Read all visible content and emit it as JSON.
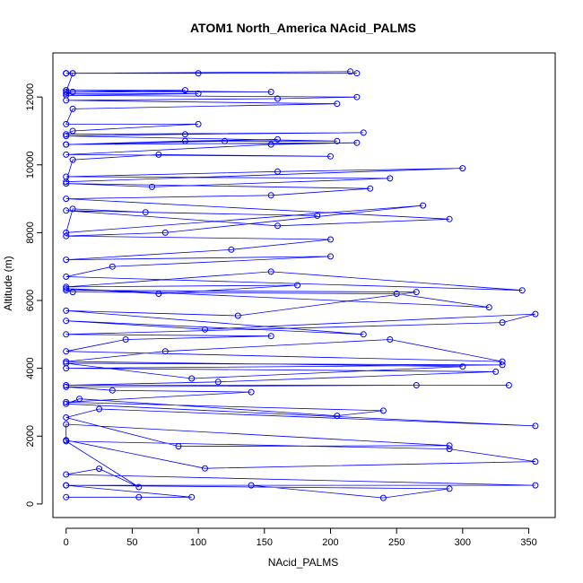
{
  "chart_data": {
    "type": "scatter",
    "title": "ATOM1 North_America NAcid_PALMS",
    "xlabel": "NAcid_PALMS",
    "ylabel": "Altitude (m)",
    "xlim": [
      -10,
      370
    ],
    "ylim": [
      -400,
      13300
    ],
    "x_ticks": [
      0,
      50,
      100,
      150,
      200,
      250,
      300,
      350
    ],
    "y_ticks": [
      0,
      2000,
      4000,
      6000,
      8000,
      10000,
      12000
    ],
    "grid": false,
    "legend": "none",
    "color": "#0000ff",
    "series": [
      {
        "mode": "lines+markers",
        "x": [
          0,
          55,
          95,
          0,
          140,
          240,
          290,
          0,
          355,
          0,
          25,
          55,
          0,
          290,
          355,
          105,
          0,
          0,
          290,
          85,
          0,
          25,
          355,
          0,
          10,
          205,
          240,
          0,
          140,
          35,
          0,
          265,
          335,
          0,
          115,
          325,
          0,
          330,
          0,
          95,
          300,
          0,
          75,
          245,
          330,
          0,
          45,
          155,
          0,
          330,
          355,
          105,
          0,
          225,
          0,
          130,
          265,
          0,
          5,
          250,
          320,
          0,
          70,
          175,
          0,
          155,
          345,
          0,
          35,
          200,
          0,
          125,
          200,
          0,
          75,
          270,
          0,
          5,
          60,
          190,
          0,
          160,
          290,
          0,
          155,
          230,
          0,
          65,
          245,
          0,
          160,
          300,
          0,
          5,
          70,
          200,
          0,
          155,
          220,
          0,
          90,
          160,
          0,
          120,
          205,
          0,
          90,
          225,
          0,
          5,
          100,
          0,
          5,
          205,
          0,
          160,
          220,
          0,
          100,
          0,
          5,
          90,
          0,
          155,
          0,
          5,
          220,
          0,
          5,
          100,
          0,
          215,
          0
        ],
        "y": [
          200,
          200,
          200,
          550,
          550,
          180,
          450,
          550,
          550,
          870,
          1040,
          500,
          1850,
          1620,
          1250,
          1050,
          1880,
          2350,
          1720,
          1700,
          2550,
          2800,
          2300,
          2950,
          3100,
          2600,
          2750,
          3000,
          3300,
          3350,
          3450,
          3500,
          3500,
          3500,
          3600,
          3900,
          4000,
          4100,
          4150,
          3700,
          4050,
          4200,
          4500,
          4850,
          4200,
          4500,
          4850,
          4950,
          5000,
          5350,
          5600,
          5150,
          5400,
          5000,
          5700,
          5550,
          6250,
          6300,
          6250,
          6200,
          5800,
          6350,
          6200,
          6450,
          6400,
          6850,
          6300,
          6700,
          7000,
          7300,
          7200,
          7500,
          7800,
          7900,
          8000,
          8800,
          8000,
          8700,
          8600,
          8500,
          8650,
          8200,
          8400,
          9000,
          9100,
          9300,
          9450,
          9350,
          9600,
          9650,
          9800,
          9900,
          9500,
          10150,
          10300,
          10250,
          10300,
          10600,
          10650,
          10600,
          10700,
          10750,
          10600,
          10700,
          10700,
          10850,
          10900,
          10950,
          10900,
          11000,
          11200,
          11200,
          11650,
          11800,
          11900,
          11950,
          12000,
          12050,
          12100,
          12100,
          12150,
          12200,
          12200,
          12150,
          12150,
          12700,
          12700,
          12700,
          12700,
          12700,
          12700,
          12750,
          12700
        ]
      }
    ]
  }
}
